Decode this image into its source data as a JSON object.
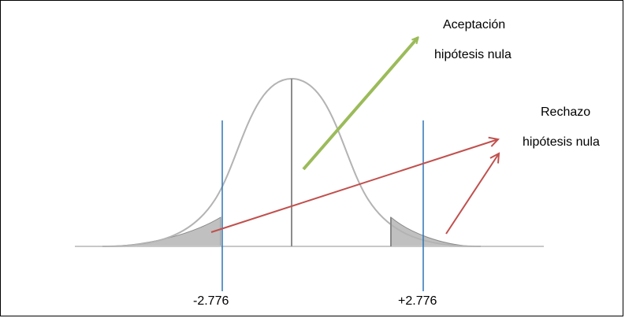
{
  "critical_values": {
    "left": "-2.776",
    "right": "+2.776"
  },
  "acceptance_label": {
    "line1": "Aceptación",
    "line2": "hipótesis nula"
  },
  "rejection_label": {
    "line1": "Rechazo",
    "line2": "hipótesis nula"
  },
  "colors": {
    "curve": "#b3b3b3",
    "center_line": "#8c8c8c",
    "axis": "#c8c8c8",
    "tail_fill": "#c0c0c0",
    "critical_lines": "#2e75b6",
    "acceptance_arrow": "#9bbb59",
    "rejection_arrows": "#c0504d"
  }
}
